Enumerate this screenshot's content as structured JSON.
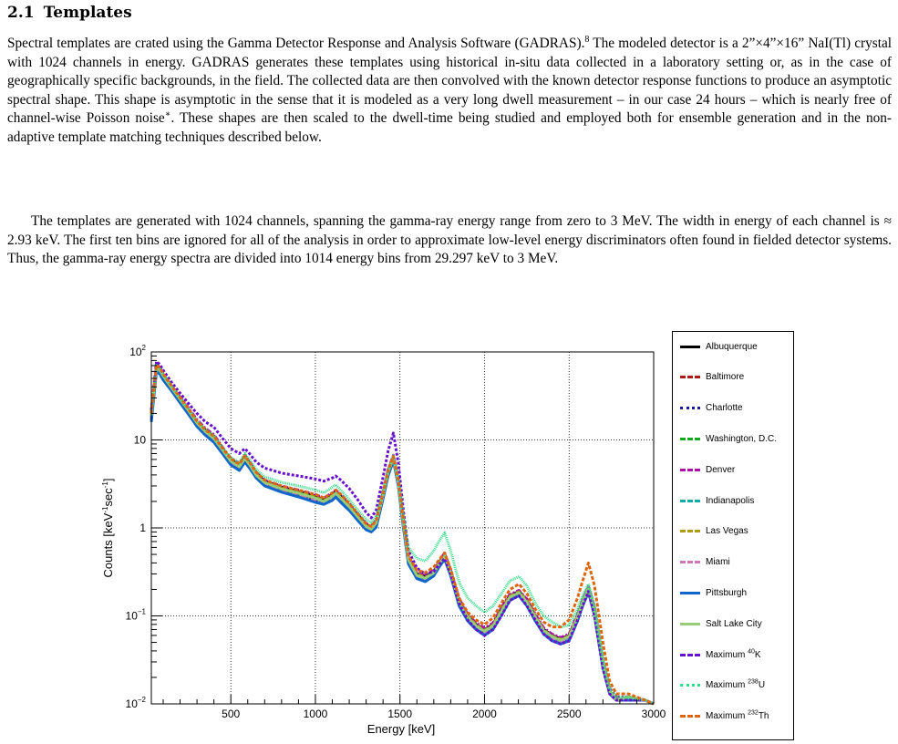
{
  "section": {
    "number": "2.1",
    "title": "Templates"
  },
  "paragraphs": {
    "p1": "Spectral templates are crated using the Gamma Detector Response and Analysis Software (GADRAS).",
    "p1_ref": "8",
    "p1b": " The modeled detector is a 2”×4”×16” NaI(Tl) crystal with 1024 channels in energy. GADRAS generates these templates using historical in-situ data collected in a laboratory setting or, as in the case of geographically specific backgrounds, in the field. The collected data are then convolved with the known detector response functions to produce an asymptotic spectral shape. This shape is asymptotic in the sense that it is modeled as a very long dwell measurement – in our case 24 hours – which is nearly free of channel-wise Poisson noise",
    "p1_star": "∗",
    "p1c": ". These shapes are then scaled to the dwell-time being studied and employed both for ensemble generation and in the non-adaptive template matching techniques described below.",
    "p2": "The templates are generated with 1024 channels, spanning the gamma-ray energy range from zero to 3 MeV. The width in energy of each channel is ≈ 2.93 keV. The first ten bins are ignored for all of the analysis in order to approximate low-level energy discriminators often found in fielded detector systems. Thus, the gamma-ray energy spectra are divided into 1014 energy bins from 29.297 keV to 3 MeV."
  },
  "chart_data": {
    "type": "line",
    "xlabel": "Energy [keV]",
    "ylabel": "Counts [keV-1sec-1]",
    "xlim": [
      30,
      3000
    ],
    "ylim": [
      0.01,
      100
    ],
    "yscale": "log",
    "grid": true,
    "legend_position": "right",
    "x_ticks": [
      500,
      1000,
      1500,
      2000,
      2500,
      3000
    ],
    "y_ticks": [
      {
        "value": 0.01,
        "base": "10",
        "exp": "−2"
      },
      {
        "value": 0.1,
        "base": "10",
        "exp": "−1"
      },
      {
        "value": 1,
        "base": "1",
        "exp": ""
      },
      {
        "value": 10,
        "base": "10",
        "exp": ""
      },
      {
        "value": 100,
        "base": "10",
        "exp": "2"
      }
    ],
    "x": [
      30,
      60,
      80,
      100,
      150,
      200,
      250,
      300,
      350,
      400,
      450,
      500,
      550,
      583,
      610,
      650,
      700,
      800,
      900,
      1000,
      1050,
      1100,
      1120,
      1150,
      1200,
      1250,
      1300,
      1330,
      1360,
      1400,
      1430,
      1461,
      1490,
      1520,
      1550,
      1600,
      1650,
      1700,
      1730,
      1764,
      1800,
      1850,
      1900,
      1950,
      2000,
      2050,
      2100,
      2150,
      2204,
      2250,
      2300,
      2350,
      2400,
      2450,
      2500,
      2550,
      2580,
      2614,
      2650,
      2700,
      2740,
      2780,
      2850,
      2950,
      3000
    ],
    "series": [
      {
        "name": "Albuquerque",
        "color": "#000000",
        "dash": "solid",
        "values": [
          20,
          70,
          65,
          55,
          40,
          30,
          22,
          16,
          13,
          11,
          8,
          6,
          5.2,
          6.5,
          5.5,
          4.2,
          3.4,
          2.9,
          2.6,
          2.3,
          2.1,
          2.4,
          2.6,
          2.3,
          1.8,
          1.4,
          1.1,
          1.0,
          1.2,
          2.5,
          4.5,
          6.5,
          3.5,
          1.2,
          0.45,
          0.3,
          0.28,
          0.32,
          0.4,
          0.5,
          0.32,
          0.15,
          0.1,
          0.08,
          0.07,
          0.08,
          0.12,
          0.17,
          0.19,
          0.15,
          0.1,
          0.07,
          0.06,
          0.055,
          0.06,
          0.1,
          0.15,
          0.21,
          0.12,
          0.03,
          0.014,
          0.011,
          0.012,
          0.011,
          0.01
        ]
      },
      {
        "name": "Baltimore",
        "color": "#aa1a1a",
        "dash": "4,3",
        "values": [
          18,
          65,
          60,
          52,
          38,
          28,
          21,
          15,
          12,
          10,
          7.5,
          5.6,
          4.8,
          6.0,
          5.1,
          3.9,
          3.2,
          2.7,
          2.4,
          2.1,
          1.95,
          2.2,
          2.4,
          2.1,
          1.7,
          1.3,
          1.0,
          0.95,
          1.1,
          2.3,
          4.2,
          6.1,
          3.2,
          1.1,
          0.42,
          0.28,
          0.26,
          0.3,
          0.38,
          0.47,
          0.3,
          0.14,
          0.095,
          0.075,
          0.065,
          0.075,
          0.11,
          0.16,
          0.18,
          0.14,
          0.095,
          0.066,
          0.056,
          0.052,
          0.056,
          0.095,
          0.14,
          0.2,
          0.11,
          0.028,
          0.013,
          0.011,
          0.011,
          0.011,
          0.01
        ]
      },
      {
        "name": "Charlotte",
        "color": "#1a1a99",
        "dash": "2,1",
        "values": [
          17,
          62,
          58,
          50,
          37,
          27,
          20,
          14.5,
          11.5,
          9.5,
          7.2,
          5.4,
          4.6,
          5.8,
          4.9,
          3.8,
          3.1,
          2.6,
          2.3,
          2.0,
          1.9,
          2.1,
          2.3,
          2.0,
          1.6,
          1.25,
          0.98,
          0.92,
          1.05,
          2.2,
          4.0,
          5.9,
          3.1,
          1.05,
          0.4,
          0.27,
          0.25,
          0.29,
          0.36,
          0.45,
          0.29,
          0.135,
          0.09,
          0.072,
          0.062,
          0.072,
          0.105,
          0.155,
          0.175,
          0.135,
          0.09,
          0.064,
          0.054,
          0.05,
          0.054,
          0.09,
          0.135,
          0.19,
          0.105,
          0.027,
          0.013,
          0.011,
          0.011,
          0.011,
          0.01
        ]
      },
      {
        "name": "Washington, D.C.",
        "color": "#11aa22",
        "dash": "6,2,2,2",
        "values": [
          19,
          68,
          63,
          54,
          39,
          29,
          21.5,
          15.5,
          12.5,
          10.5,
          7.8,
          5.8,
          5.0,
          6.2,
          5.3,
          4.0,
          3.3,
          2.8,
          2.5,
          2.2,
          2.0,
          2.3,
          2.5,
          2.2,
          1.75,
          1.35,
          1.05,
          0.97,
          1.15,
          2.4,
          4.3,
          6.3,
          3.3,
          1.15,
          0.44,
          0.29,
          0.27,
          0.31,
          0.39,
          0.48,
          0.31,
          0.145,
          0.098,
          0.078,
          0.068,
          0.078,
          0.115,
          0.165,
          0.185,
          0.145,
          0.098,
          0.068,
          0.058,
          0.053,
          0.058,
          0.098,
          0.145,
          0.205,
          0.115,
          0.029,
          0.014,
          0.011,
          0.012,
          0.011,
          0.01
        ]
      },
      {
        "name": "Denver",
        "color": "#aa11aa",
        "dash": "6,2,2,2",
        "values": [
          20,
          72,
          67,
          57,
          41,
          31,
          23,
          17,
          13.5,
          11.5,
          8.3,
          6.2,
          5.4,
          6.7,
          5.7,
          4.3,
          3.5,
          3.0,
          2.7,
          2.4,
          2.2,
          2.5,
          2.7,
          2.4,
          1.9,
          1.45,
          1.13,
          1.03,
          1.25,
          2.6,
          4.6,
          6.7,
          3.6,
          1.25,
          0.47,
          0.31,
          0.29,
          0.33,
          0.41,
          0.52,
          0.33,
          0.155,
          0.105,
          0.083,
          0.073,
          0.083,
          0.125,
          0.175,
          0.195,
          0.155,
          0.105,
          0.073,
          0.062,
          0.057,
          0.062,
          0.105,
          0.155,
          0.215,
          0.125,
          0.031,
          0.015,
          0.012,
          0.012,
          0.011,
          0.01
        ]
      },
      {
        "name": "Indianapolis",
        "color": "#11aaaa",
        "dash": "5,2,1,2",
        "values": [
          18,
          66,
          61,
          53,
          38.5,
          28.5,
          21,
          15.2,
          12.2,
          10.2,
          7.6,
          5.7,
          4.9,
          6.1,
          5.2,
          3.95,
          3.25,
          2.75,
          2.45,
          2.15,
          1.98,
          2.25,
          2.45,
          2.15,
          1.72,
          1.32,
          1.03,
          0.96,
          1.12,
          2.35,
          4.25,
          6.2,
          3.25,
          1.12,
          0.43,
          0.285,
          0.265,
          0.305,
          0.385,
          0.475,
          0.305,
          0.143,
          0.096,
          0.076,
          0.066,
          0.076,
          0.112,
          0.162,
          0.182,
          0.142,
          0.096,
          0.067,
          0.057,
          0.052,
          0.057,
          0.096,
          0.142,
          0.2,
          0.112,
          0.028,
          0.014,
          0.011,
          0.012,
          0.011,
          0.01
        ]
      },
      {
        "name": "Las Vegas",
        "color": "#aa9911",
        "dash": "5,3",
        "values": [
          19,
          69,
          64,
          55,
          40,
          29.5,
          22,
          16,
          12.8,
          10.8,
          8.0,
          6.0,
          5.1,
          6.4,
          5.4,
          4.1,
          3.35,
          2.85,
          2.55,
          2.25,
          2.05,
          2.35,
          2.55,
          2.25,
          1.78,
          1.38,
          1.07,
          0.99,
          1.17,
          2.45,
          4.4,
          6.4,
          3.4,
          1.17,
          0.45,
          0.3,
          0.275,
          0.315,
          0.395,
          0.49,
          0.315,
          0.148,
          0.1,
          0.079,
          0.069,
          0.079,
          0.118,
          0.168,
          0.188,
          0.148,
          0.1,
          0.069,
          0.059,
          0.054,
          0.059,
          0.1,
          0.148,
          0.208,
          0.118,
          0.03,
          0.014,
          0.011,
          0.012,
          0.011,
          0.01
        ]
      },
      {
        "name": "Miami",
        "color": "#cc77bb",
        "dash": "6,2,1,2",
        "values": [
          17,
          63,
          59,
          51,
          37.5,
          27.5,
          20.5,
          14.8,
          11.8,
          9.8,
          7.3,
          5.5,
          4.7,
          5.9,
          5.0,
          3.85,
          3.15,
          2.65,
          2.35,
          2.05,
          1.92,
          2.15,
          2.35,
          2.05,
          1.65,
          1.28,
          1.0,
          0.93,
          1.08,
          2.25,
          4.1,
          6.0,
          3.15,
          1.08,
          0.41,
          0.275,
          0.255,
          0.295,
          0.37,
          0.46,
          0.295,
          0.138,
          0.092,
          0.073,
          0.063,
          0.073,
          0.108,
          0.158,
          0.178,
          0.138,
          0.092,
          0.065,
          0.055,
          0.051,
          0.055,
          0.092,
          0.138,
          0.195,
          0.108,
          0.027,
          0.013,
          0.011,
          0.011,
          0.011,
          0.01
        ]
      },
      {
        "name": "Pittsburgh",
        "color": "#1166cc",
        "dash": "solid",
        "values": [
          16,
          60,
          56,
          48,
          36,
          26.5,
          19.5,
          14.2,
          11.3,
          9.4,
          7.0,
          5.2,
          4.5,
          5.6,
          4.8,
          3.7,
          3.0,
          2.55,
          2.25,
          1.95,
          1.85,
          2.05,
          2.25,
          1.95,
          1.58,
          1.22,
          0.95,
          0.9,
          1.02,
          2.15,
          3.9,
          5.8,
          3.0,
          1.02,
          0.39,
          0.265,
          0.245,
          0.285,
          0.355,
          0.44,
          0.285,
          0.13,
          0.088,
          0.07,
          0.06,
          0.07,
          0.102,
          0.15,
          0.17,
          0.13,
          0.088,
          0.062,
          0.052,
          0.048,
          0.052,
          0.088,
          0.13,
          0.185,
          0.102,
          0.026,
          0.013,
          0.011,
          0.011,
          0.011,
          0.01
        ]
      },
      {
        "name": "Salt Lake City",
        "color": "#99cc77",
        "dash": "solid",
        "values": [
          19,
          67,
          62,
          53.5,
          39,
          29,
          21.5,
          15.6,
          12.4,
          10.4,
          7.7,
          5.75,
          4.95,
          6.15,
          5.25,
          3.98,
          3.28,
          2.78,
          2.48,
          2.18,
          2.0,
          2.28,
          2.48,
          2.18,
          1.74,
          1.34,
          1.04,
          0.965,
          1.14,
          2.38,
          4.3,
          6.25,
          3.28,
          1.14,
          0.435,
          0.288,
          0.268,
          0.308,
          0.388,
          0.478,
          0.308,
          0.144,
          0.097,
          0.077,
          0.067,
          0.077,
          0.113,
          0.163,
          0.183,
          0.143,
          0.097,
          0.068,
          0.058,
          0.053,
          0.058,
          0.097,
          0.143,
          0.202,
          0.113,
          0.029,
          0.014,
          0.011,
          0.012,
          0.011,
          0.01
        ]
      },
      {
        "name": "Maximum 40K",
        "color": "#6611cc",
        "dash": "3,2",
        "values": [
          22,
          78,
          72,
          62,
          45,
          34,
          26,
          20,
          16,
          14,
          10.5,
          8.0,
          7.0,
          8.0,
          7.0,
          5.6,
          4.8,
          4.2,
          3.9,
          3.6,
          3.4,
          3.7,
          3.9,
          3.5,
          2.8,
          2.1,
          1.5,
          1.3,
          1.6,
          3.8,
          7.5,
          12,
          5.5,
          1.6,
          0.55,
          0.35,
          0.3,
          0.32,
          0.38,
          0.45,
          0.3,
          0.14,
          0.09,
          0.07,
          0.06,
          0.07,
          0.1,
          0.15,
          0.17,
          0.13,
          0.09,
          0.062,
          0.052,
          0.048,
          0.052,
          0.09,
          0.13,
          0.19,
          0.1,
          0.025,
          0.013,
          0.011,
          0.011,
          0.011,
          0.01
        ]
      },
      {
        "name": "Maximum 238U",
        "color": "#33dd88",
        "dash": "1,1",
        "values": [
          19,
          70,
          65,
          56,
          41,
          30,
          22.5,
          16.5,
          13.2,
          11.2,
          8.2,
          6.3,
          5.5,
          7.0,
          6.0,
          4.6,
          3.8,
          3.3,
          3.0,
          2.7,
          2.5,
          2.9,
          3.1,
          2.7,
          2.1,
          1.6,
          1.25,
          1.15,
          1.35,
          2.6,
          4.5,
          6.6,
          3.6,
          1.4,
          0.6,
          0.45,
          0.42,
          0.55,
          0.7,
          0.88,
          0.55,
          0.24,
          0.16,
          0.13,
          0.11,
          0.13,
          0.18,
          0.25,
          0.28,
          0.22,
          0.14,
          0.1,
          0.085,
          0.075,
          0.078,
          0.12,
          0.17,
          0.23,
          0.13,
          0.033,
          0.015,
          0.012,
          0.012,
          0.011,
          0.01
        ]
      },
      {
        "name": "Maximum 232Th",
        "color": "#dd6611",
        "dash": "4,2",
        "values": [
          20,
          71,
          66,
          56.5,
          41,
          30.5,
          22.5,
          16.3,
          13,
          11,
          8.1,
          6.1,
          5.3,
          6.6,
          5.6,
          4.3,
          3.5,
          3.0,
          2.7,
          2.4,
          2.2,
          2.5,
          2.7,
          2.4,
          1.9,
          1.45,
          1.12,
          1.04,
          1.22,
          2.5,
          4.5,
          6.5,
          3.5,
          1.25,
          0.48,
          0.33,
          0.31,
          0.36,
          0.43,
          0.52,
          0.34,
          0.16,
          0.11,
          0.09,
          0.08,
          0.095,
          0.14,
          0.2,
          0.23,
          0.18,
          0.12,
          0.085,
          0.075,
          0.075,
          0.09,
          0.16,
          0.25,
          0.4,
          0.22,
          0.05,
          0.018,
          0.013,
          0.013,
          0.011,
          0.01
        ]
      }
    ]
  },
  "legend": [
    {
      "label": "Albuquerque",
      "sup": ""
    },
    {
      "label": "Baltimore",
      "sup": ""
    },
    {
      "label": "Charlotte",
      "sup": ""
    },
    {
      "label": "Washington, D.C.",
      "sup": ""
    },
    {
      "label": "Denver",
      "sup": ""
    },
    {
      "label": "Indianapolis",
      "sup": ""
    },
    {
      "label": "Las Vegas",
      "sup": ""
    },
    {
      "label": "Miami",
      "sup": ""
    },
    {
      "label": "Pittsburgh",
      "sup": ""
    },
    {
      "label": "Salt Lake City",
      "sup": ""
    },
    {
      "label": "Maximum ",
      "sup": "40",
      "suffix": "K"
    },
    {
      "label": "Maximum ",
      "sup": "238",
      "suffix": "U"
    },
    {
      "label": "Maximum ",
      "sup": "232",
      "suffix": "Th"
    }
  ],
  "axis": {
    "xlabel": "Energy [keV]",
    "ylabel_main": "Counts [keV",
    "ylabel_sup1": "-1",
    "ylabel_mid": "sec",
    "ylabel_sup2": "-1",
    "ylabel_end": "]"
  }
}
